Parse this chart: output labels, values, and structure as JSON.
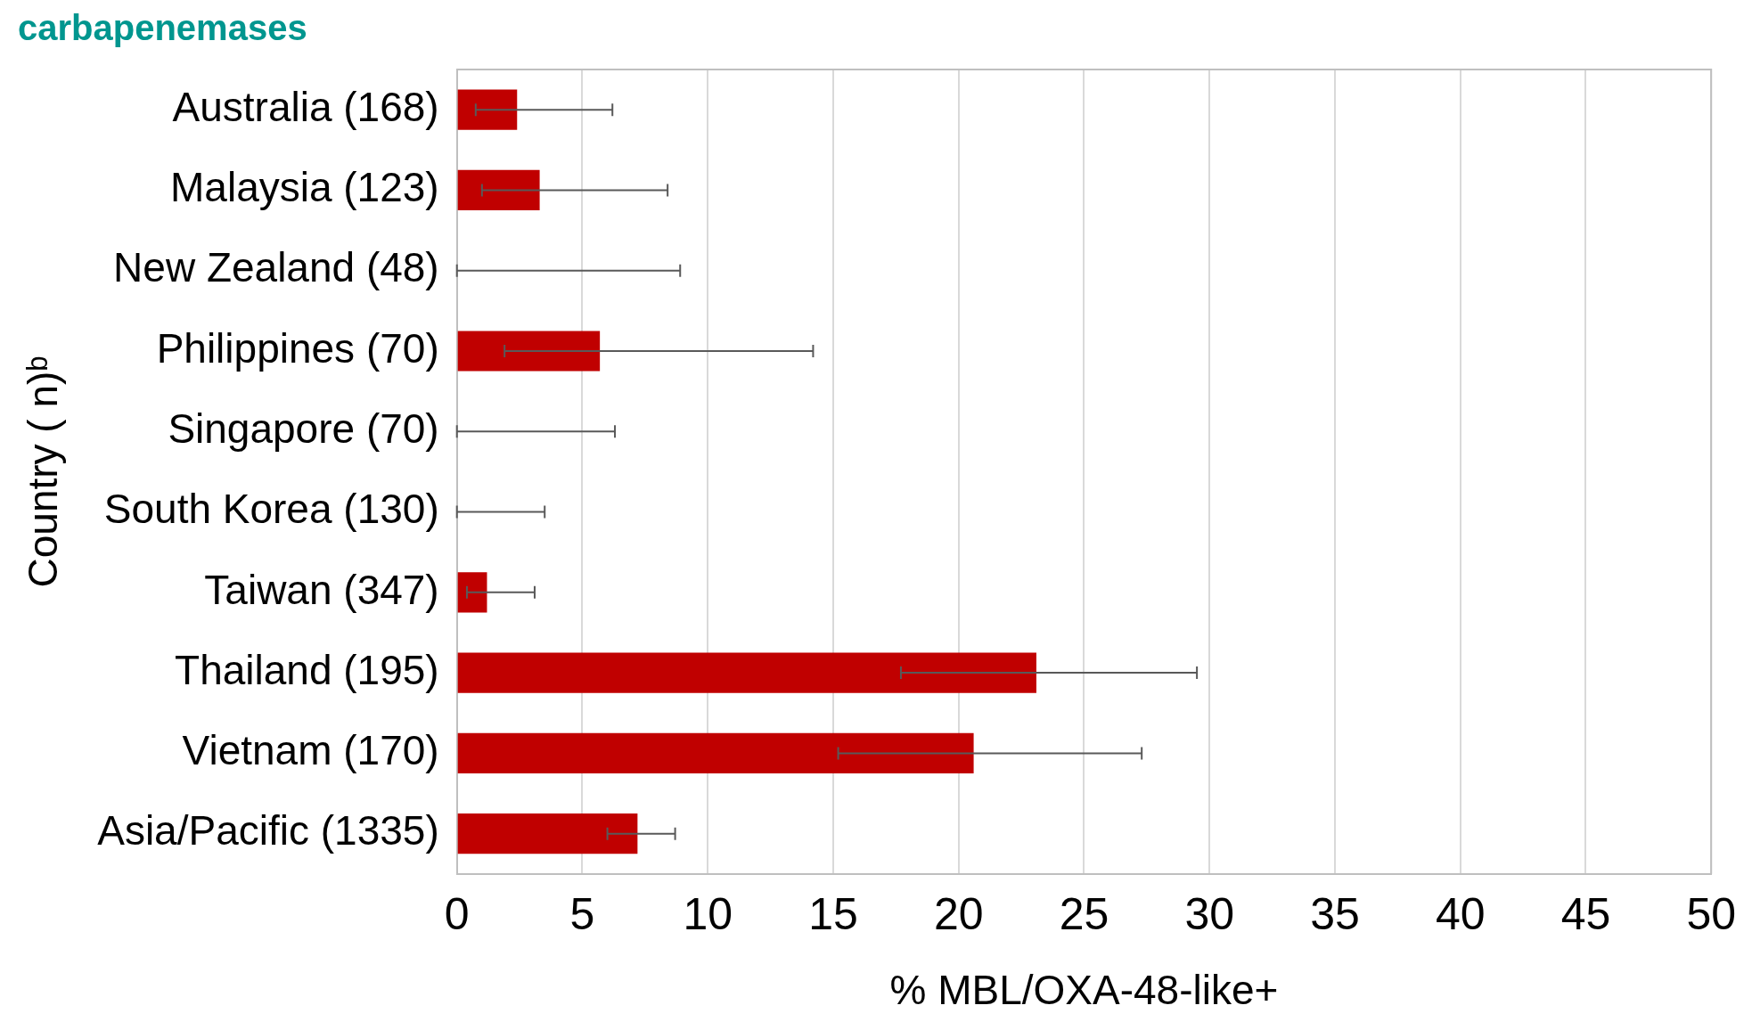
{
  "chart_data": {
    "type": "bar",
    "orientation": "horizontal",
    "title": "carbapenemases",
    "xlabel": "% MBL/OXA-48-like+",
    "ylabel": "Country ( n)ᵇ",
    "categories": [
      "Australia (168)",
      "Malaysia (123)",
      "New Zealand (48)",
      "Philippines (70)",
      "Singapore (70)",
      "South Korea (130)",
      "Taiwan (347)",
      "Thailand (195)",
      "Vietnam (170)",
      "Asia/Pacific (1335)"
    ],
    "values": [
      2.4,
      3.3,
      0,
      5.7,
      0,
      0,
      1.2,
      23.1,
      20.6,
      7.2
    ],
    "errors": [
      [
        0.75,
        6.2
      ],
      [
        1.0,
        8.4
      ],
      [
        0,
        8.9
      ],
      [
        1.9,
        14.2
      ],
      [
        0,
        6.3
      ],
      [
        0,
        3.5
      ],
      [
        0.4,
        3.1
      ],
      [
        17.7,
        29.5
      ],
      [
        15.2,
        27.3
      ],
      [
        6.0,
        8.7
      ]
    ],
    "color": "#c00000",
    "xlim": [
      0,
      50
    ],
    "xticks": [
      0,
      5,
      10,
      15,
      20,
      25,
      30,
      35,
      40,
      45,
      50
    ],
    "grid": "x",
    "legend": false
  }
}
